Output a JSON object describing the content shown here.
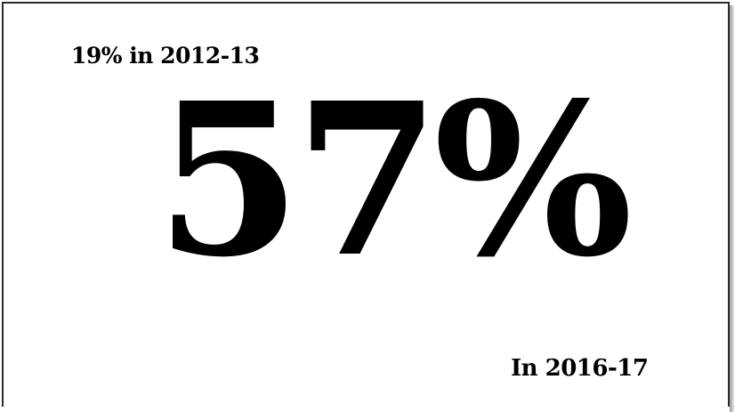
{
  "slide": {
    "prior_stat": "19% in 2012-13",
    "main_stat": "57%",
    "current_year_label": "In 2016-17"
  },
  "colors": {
    "text": "#000000",
    "background": "#ffffff",
    "border": "#2a2a2a"
  }
}
